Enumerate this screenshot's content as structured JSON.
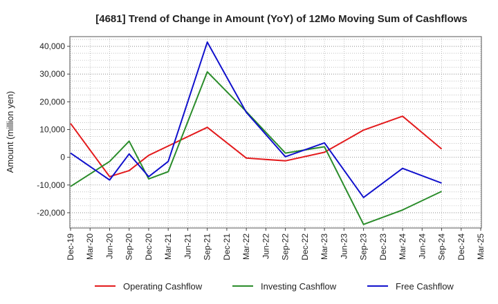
{
  "chart_data": {
    "type": "line",
    "title": "[4681]  Trend of Change in Amount (YoY) of 12Mo Moving Sum of Cashflows",
    "xlabel": "",
    "ylabel": "Amount (million yen)",
    "ylim": [
      -25500,
      43500
    ],
    "yticks": [
      40000,
      30000,
      20000,
      10000,
      0,
      -10000,
      -20000
    ],
    "ytick_labels": [
      "40,000",
      "30,000",
      "20,000",
      "10,000",
      "0",
      "-10,000",
      "-20,000"
    ],
    "categories": [
      "Dec-19",
      "Mar-20",
      "Jun-20",
      "Sep-20",
      "Dec-20",
      "Mar-21",
      "Jun-21",
      "Sep-21",
      "Dec-21",
      "Mar-22",
      "Jun-22",
      "Sep-22",
      "Dec-22",
      "Mar-23",
      "Jun-23",
      "Sep-23",
      "Dec-23",
      "Mar-24",
      "Jun-24",
      "Sep-24",
      "Dec-24",
      "Mar-25"
    ],
    "grid": true,
    "legend_position": "bottom",
    "series": [
      {
        "name": "Operating Cashflow",
        "color": "#e31a1c",
        "values": [
          12200,
          null,
          -7000,
          -4800,
          700,
          null,
          null,
          10800,
          null,
          -300,
          null,
          -1300,
          null,
          1800,
          null,
          9800,
          null,
          14800,
          null,
          3000,
          null,
          null
        ]
      },
      {
        "name": "Investing Cashflow",
        "color": "#2a8c2a",
        "values": [
          -10500,
          null,
          -1500,
          5800,
          -7800,
          -5200,
          null,
          30800,
          null,
          16500,
          null,
          1500,
          null,
          3800,
          null,
          -24200,
          null,
          -19000,
          null,
          -12300,
          null,
          null
        ]
      },
      {
        "name": "Free Cashflow",
        "color": "#1010cc",
        "values": [
          1500,
          null,
          -8200,
          1200,
          -7000,
          -1500,
          null,
          41500,
          null,
          16200,
          null,
          200,
          null,
          5200,
          null,
          -14500,
          null,
          -4000,
          null,
          -9300,
          null,
          null
        ]
      }
    ]
  }
}
